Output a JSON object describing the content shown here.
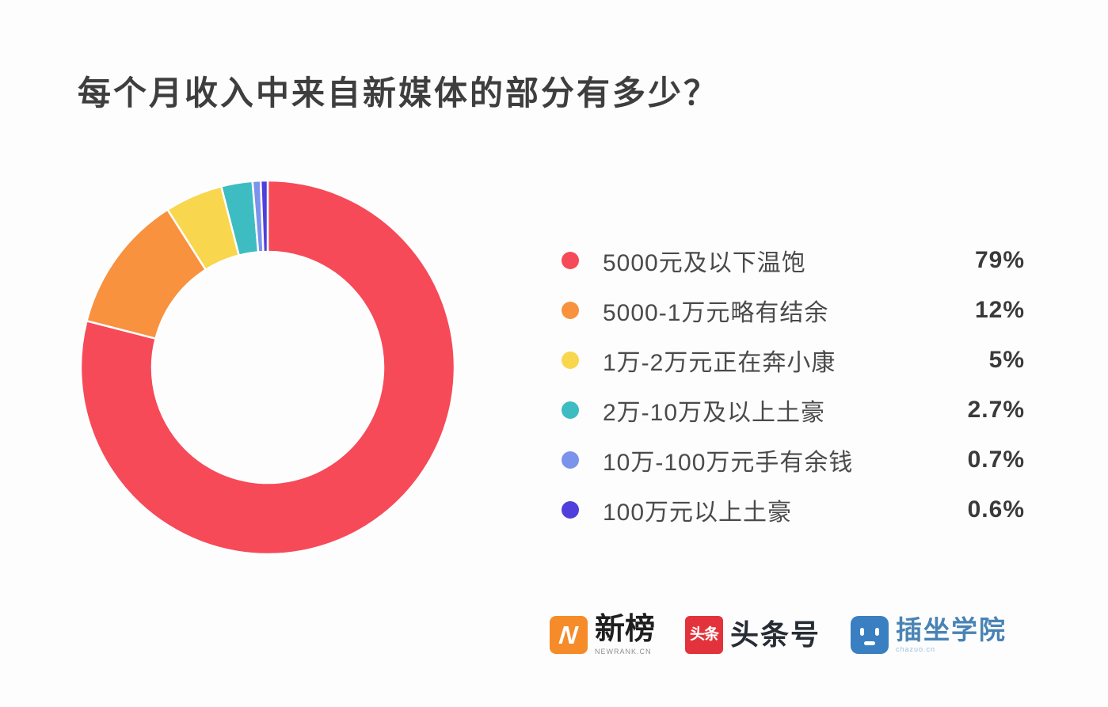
{
  "page": {
    "background": "#fdfdfd"
  },
  "title": "每个月收入中来自新媒体的部分有多少？",
  "chart_data": {
    "type": "pie",
    "variant": "donut",
    "title": "每个月收入中来自新媒体的部分有多少？",
    "categories": [
      "5000元及以下温饱",
      "5000-1万元略有结余",
      "1万-2万元正在奔小康",
      "2万-10万及以上土豪",
      "10万-100万元手有余钱",
      "100万元以上土豪"
    ],
    "values": [
      79,
      12,
      5,
      2.7,
      0.7,
      0.6
    ],
    "value_labels": [
      "79%",
      "12%",
      "5%",
      "2.7%",
      "0.7%",
      "0.6%"
    ],
    "colors": [
      "#f64a58",
      "#f8923f",
      "#f8d74e",
      "#3dbcc2",
      "#7c93ec",
      "#4f40db"
    ],
    "start_angle_deg": 0,
    "direction": "clockwise",
    "inner_radius_ratio": 0.62,
    "segment_gap_color": "#ffffff",
    "legend_position": "right",
    "grid": false
  },
  "footer": {
    "logos": [
      {
        "name": "newrank",
        "badge_glyph": "N",
        "badge_color": "#f68b2a",
        "text": "新榜",
        "subtext": "NEWRANK.CN"
      },
      {
        "name": "toutiao",
        "badge_glyph": "头条",
        "badge_color": "#e2333c",
        "text": "头条号",
        "subtext": ""
      },
      {
        "name": "chazuo",
        "badge_glyph": "robot-face",
        "badge_color": "#3a7fc2",
        "text": "插坐学院",
        "subtext": "chazuo.cn"
      }
    ]
  }
}
